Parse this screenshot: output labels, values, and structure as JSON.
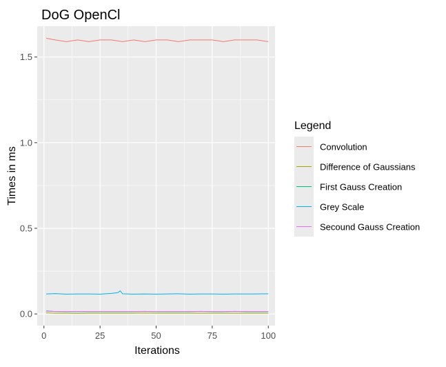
{
  "chart_data": {
    "type": "line",
    "title": "DoG OpenCl",
    "xlabel": "Iterations",
    "ylabel": "Times in ms",
    "xlim": [
      -3,
      103
    ],
    "ylim": [
      -0.068,
      1.68
    ],
    "xticks": [
      0,
      25,
      50,
      75,
      100
    ],
    "xtick_labels": [
      "0",
      "25",
      "50",
      "75",
      "100"
    ],
    "yticks": [
      0.0,
      0.5,
      1.0,
      1.5
    ],
    "ytick_labels": [
      "0.0",
      "0.5",
      "1.0",
      "1.5"
    ],
    "grid": true,
    "legend": {
      "title": "Legend",
      "position": "right"
    },
    "series": [
      {
        "name": "Convolution",
        "color": "#F8766D",
        "x": [
          1,
          5,
          10,
          15,
          20,
          25,
          30,
          35,
          40,
          45,
          50,
          55,
          60,
          65,
          70,
          75,
          80,
          85,
          90,
          95,
          100
        ],
        "y": [
          1.61,
          1.6,
          1.59,
          1.6,
          1.59,
          1.6,
          1.6,
          1.59,
          1.6,
          1.59,
          1.6,
          1.6,
          1.59,
          1.6,
          1.6,
          1.6,
          1.59,
          1.6,
          1.6,
          1.6,
          1.59
        ]
      },
      {
        "name": "Difference of Gaussians",
        "color": "#A3A500",
        "x": [
          1,
          5,
          10,
          15,
          20,
          25,
          30,
          35,
          40,
          45,
          50,
          55,
          60,
          65,
          70,
          75,
          80,
          85,
          90,
          95,
          100
        ],
        "y": [
          0.006,
          0.004,
          0.004,
          0.003,
          0.004,
          0.004,
          0.004,
          0.004,
          0.004,
          0.005,
          0.004,
          0.004,
          0.004,
          0.004,
          0.004,
          0.004,
          0.004,
          0.004,
          0.004,
          0.004,
          0.004
        ]
      },
      {
        "name": "First Gauss Creation",
        "color": "#00BF7D",
        "x": [
          1,
          5,
          10,
          15,
          20,
          25,
          30,
          35,
          40,
          45,
          50,
          55,
          60,
          65,
          70,
          75,
          80,
          85,
          90,
          95,
          100
        ],
        "y": [
          0.018,
          0.014,
          0.013,
          0.013,
          0.013,
          0.013,
          0.013,
          0.013,
          0.013,
          0.015,
          0.013,
          0.013,
          0.013,
          0.013,
          0.015,
          0.013,
          0.013,
          0.015,
          0.013,
          0.013,
          0.013
        ]
      },
      {
        "name": "Grey Scale",
        "color": "#00B0F6",
        "x": [
          1,
          5,
          10,
          15,
          20,
          25,
          30,
          33,
          34,
          35,
          40,
          45,
          50,
          55,
          60,
          65,
          70,
          75,
          80,
          85,
          90,
          95,
          100
        ],
        "y": [
          0.117,
          0.119,
          0.116,
          0.117,
          0.117,
          0.116,
          0.12,
          0.125,
          0.135,
          0.118,
          0.116,
          0.117,
          0.116,
          0.117,
          0.118,
          0.116,
          0.117,
          0.117,
          0.116,
          0.117,
          0.117,
          0.117,
          0.118
        ]
      },
      {
        "name": "Secound Gauss Creation",
        "color": "#E76BF3",
        "x": [
          1,
          5,
          10,
          15,
          20,
          25,
          30,
          35,
          40,
          45,
          50,
          55,
          60,
          65,
          70,
          75,
          80,
          85,
          90,
          95,
          100
        ],
        "y": [
          0.016,
          0.014,
          0.014,
          0.014,
          0.014,
          0.014,
          0.014,
          0.014,
          0.014,
          0.014,
          0.014,
          0.014,
          0.014,
          0.014,
          0.014,
          0.014,
          0.014,
          0.014,
          0.014,
          0.014,
          0.014
        ]
      }
    ]
  }
}
